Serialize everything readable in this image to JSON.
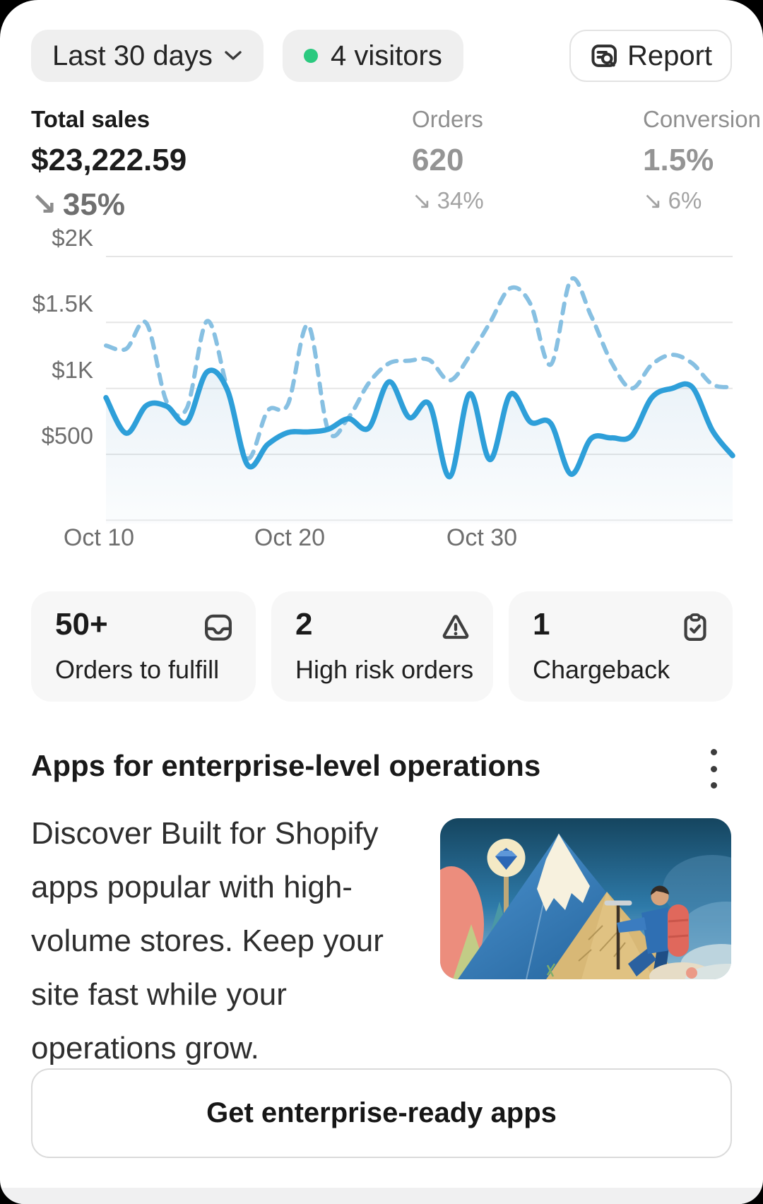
{
  "header": {
    "date_range": {
      "label": "Last 30 days"
    },
    "visitors": {
      "label": "4 visitors",
      "dot_color": "#2bc97f"
    },
    "report_button": {
      "label": "Report"
    }
  },
  "metrics": [
    {
      "label": "Total sales",
      "value": "$23,222.59",
      "arrow": "↘",
      "change": "35%"
    },
    {
      "label": "Orders",
      "value": "620",
      "arrow": "↘",
      "change": "34%"
    },
    {
      "label": "Conversion",
      "value": "1.5%",
      "arrow": "↘",
      "change": "6%"
    }
  ],
  "chart_data": {
    "type": "line",
    "title": "Total sales over last 30 days",
    "x_labels": [
      "Oct 10",
      "Oct 20",
      "Oct 30"
    ],
    "y_ticks": [
      "$2K",
      "$1.5K",
      "$1K",
      "$500"
    ],
    "y_tick_values": [
      2000,
      1500,
      1000,
      500
    ],
    "ylim": [
      0,
      2000
    ],
    "grid": true,
    "legend": "none",
    "series": [
      {
        "id": "current_period",
        "style": "solid",
        "color": "#2e9fd9",
        "fill": true,
        "values": [
          930,
          660,
          870,
          865,
          745,
          1125,
          990,
          420,
          575,
          665,
          670,
          690,
          770,
          700,
          1050,
          780,
          880,
          330,
          960,
          460,
          955,
          745,
          735,
          350,
          620,
          625,
          640,
          930,
          1000,
          1010,
          680,
          490
        ]
      },
      {
        "id": "previous_period",
        "style": "dashed",
        "color": "#87c0e2",
        "fill": false,
        "values": [
          1325,
          1300,
          1495,
          900,
          850,
          1510,
          1000,
          470,
          830,
          880,
          1480,
          680,
          780,
          1040,
          1190,
          1210,
          1215,
          1060,
          1250,
          1500,
          1760,
          1640,
          1180,
          1825,
          1550,
          1200,
          1000,
          1180,
          1255,
          1190,
          1030,
          1010
        ]
      }
    ]
  },
  "stat_cards": [
    {
      "number": "50+",
      "label": "Orders to fulfill",
      "icon": "inbox-tray-icon"
    },
    {
      "number": "2",
      "label": "High risk orders",
      "icon": "warning-triangle-icon"
    },
    {
      "number": "1",
      "label": "Chargeback",
      "icon": "clipboard-check-icon"
    }
  ],
  "apps_section": {
    "title": "Apps for enterprise-level operations",
    "body": "Discover Built for Shopify apps popular with high-volume stores. Keep your site fast while your operations grow.",
    "illustration": "mountain-hiker-illustration",
    "menu_icon": "kebab-menu-icon"
  },
  "cta": {
    "label": "Get enterprise-ready apps"
  },
  "colors": {
    "accent_blue": "#2e9fd9",
    "compare_blue": "#87c0e2",
    "visitors_green": "#2bc97f",
    "card_bg": "#f7f7f7",
    "pill_bg": "#efefef"
  }
}
